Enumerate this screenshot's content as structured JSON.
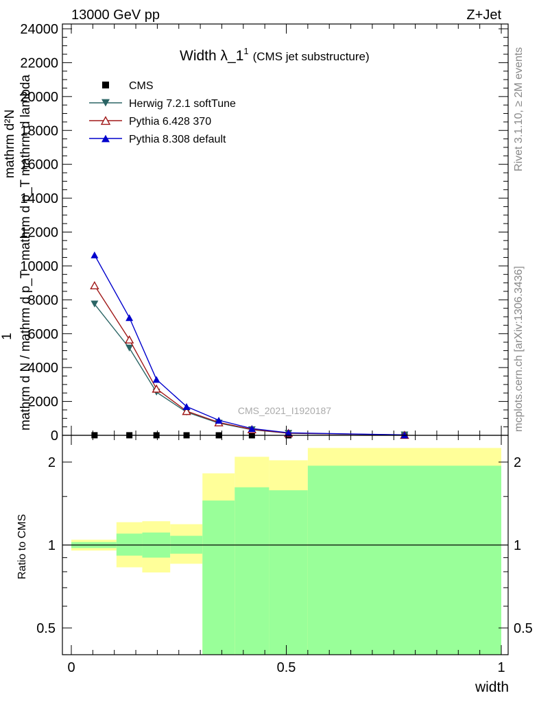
{
  "header": {
    "energy_label": "13000 GeV pp",
    "process_label": "Z+Jet",
    "title_main": "Width λ_1",
    "title_sup": "1",
    "title_sub": "(CMS jet substructure)",
    "analysis_id": "CMS_2021_I1920187"
  },
  "side_labels": {
    "rivet": "Rivet 3.1.10, ≥ 2M events",
    "mcplots": "mcplots.cern.ch [arXiv:1306.3436]"
  },
  "axes": {
    "ylabel_top_num": "mathrm d²N",
    "ylabel_top_den": "mathrm d p_T mathrm d lambda",
    "ylabel_frac_one": "1",
    "ylabel_frac_den": "mathrm d N / mathrm d p_T",
    "ylabel_ratio": "Ratio to CMS",
    "xlabel": "width"
  },
  "legend": [
    {
      "label": "CMS",
      "color": "#000000",
      "marker": "square"
    },
    {
      "label": "Herwig 7.2.1 softTune",
      "color": "#2a6464",
      "marker": "triangle-down"
    },
    {
      "label": "Pythia 6.428 370",
      "color": "#a01818",
      "marker": "triangle-open"
    },
    {
      "label": "Pythia 8.308 default",
      "color": "#0000cc",
      "marker": "triangle-up"
    }
  ],
  "chart_data": [
    {
      "type": "line",
      "title": "Width λ_1^1 (CMS jet substructure)",
      "xlabel": "",
      "ylabel": "1/(dN/dp_T) d²N/(dp_T dλ)",
      "xlim": [
        0,
        1
      ],
      "ylim": [
        0,
        24000
      ],
      "yticks": [
        0,
        2000,
        4000,
        6000,
        8000,
        10000,
        12000,
        14000,
        16000,
        18000,
        20000,
        22000,
        24000
      ],
      "ytick_labels": [
        "0",
        "2000",
        "4000",
        "6000",
        "8000",
        "10000",
        "12000",
        "14000",
        "16000",
        "18000",
        "20000",
        "22000",
        "24000"
      ],
      "x": [
        0.054,
        0.135,
        0.198,
        0.268,
        0.343,
        0.42,
        0.505,
        0.775
      ],
      "series": [
        {
          "name": "CMS",
          "values": [
            5,
            4,
            3,
            2,
            1.5,
            1,
            0.5,
            0.1
          ]
        },
        {
          "name": "Herwig 7.2.1 softTune",
          "values": [
            7750,
            5150,
            2550,
            1370,
            720,
            330,
            120,
            20
          ]
        },
        {
          "name": "Pythia 6.428 370",
          "values": [
            8850,
            5650,
            2750,
            1430,
            760,
            350,
            130,
            22
          ]
        },
        {
          "name": "Pythia 8.308 default",
          "values": [
            10650,
            6950,
            3300,
            1700,
            890,
            400,
            150,
            25
          ]
        }
      ],
      "grid": false,
      "legend_position": "top-left"
    },
    {
      "type": "area",
      "ylabel": "Ratio to CMS",
      "xlabel": "width",
      "xlim": [
        0,
        1
      ],
      "ylim": [
        0.36,
        2.25
      ],
      "yscale": "log",
      "yticks": [
        0.5,
        1,
        2
      ],
      "ytick_labels": [
        "0.5",
        "1",
        "2"
      ],
      "xticks": [
        0,
        0.5,
        1
      ],
      "xtick_labels": [
        "0",
        "0.5",
        "1"
      ],
      "bins": [
        {
          "lo": 0.0,
          "hi": 0.105,
          "yellow": [
            0.955,
            1.045
          ],
          "green": [
            0.975,
            1.025
          ]
        },
        {
          "lo": 0.105,
          "hi": 0.165,
          "yellow": [
            0.83,
            1.21
          ],
          "green": [
            0.915,
            1.1
          ]
        },
        {
          "lo": 0.165,
          "hi": 0.23,
          "yellow": [
            0.795,
            1.22
          ],
          "green": [
            0.9,
            1.11
          ]
        },
        {
          "lo": 0.23,
          "hi": 0.305,
          "yellow": [
            0.855,
            1.19
          ],
          "green": [
            0.93,
            1.08
          ]
        },
        {
          "lo": 0.305,
          "hi": 0.38,
          "yellow": [
            0.335,
            1.82
          ],
          "green": [
            0.335,
            1.45
          ]
        },
        {
          "lo": 0.38,
          "hi": 0.46,
          "yellow": [
            0.335,
            2.09
          ],
          "green": [
            0.37,
            1.62
          ]
        },
        {
          "lo": 0.46,
          "hi": 0.55,
          "yellow": [
            0.335,
            2.03
          ],
          "green": [
            0.335,
            1.58
          ]
        },
        {
          "lo": 0.55,
          "hi": 1.0,
          "yellow": [
            0.335,
            2.25
          ],
          "green": [
            0.335,
            1.94
          ]
        }
      ],
      "colors": {
        "yellow": "#ffff99",
        "green": "#99ff99"
      },
      "reference_line": 1
    }
  ]
}
